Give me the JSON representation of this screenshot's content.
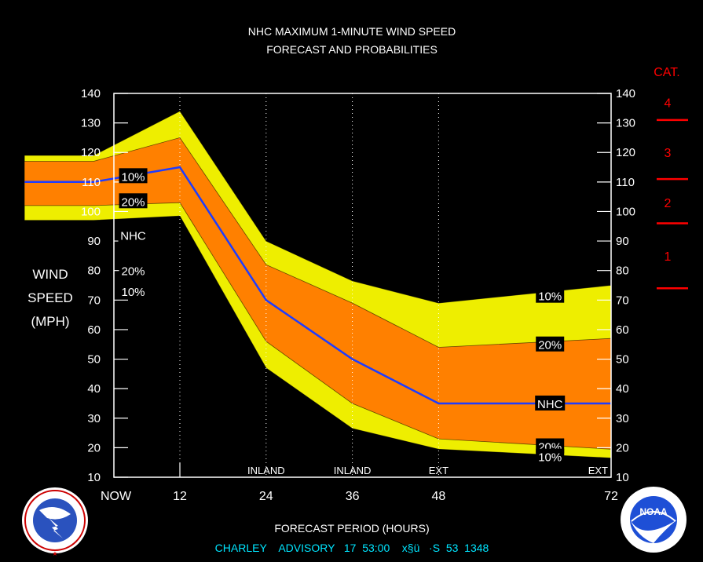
{
  "chart_data": {
    "type": "area",
    "title": "NHC MAXIMUM 1-MINUTE WIND SPEED",
    "subtitle": "FORECAST AND PROBABILITIES",
    "ylabel_lines": [
      "WIND",
      "SPEED",
      "(MPH)"
    ],
    "xlabel": "FORECAST PERIOD (HOURS)",
    "ylim": [
      10,
      140
    ],
    "xlim": [
      0,
      72
    ],
    "yticks": [
      10,
      20,
      30,
      40,
      50,
      60,
      70,
      80,
      90,
      100,
      110,
      120,
      130,
      140
    ],
    "xticks": [
      {
        "x": 0,
        "label": "NOW"
      },
      {
        "x": 12,
        "label": "12"
      },
      {
        "x": 24,
        "label": "24"
      },
      {
        "x": 36,
        "label": "36"
      },
      {
        "x": 48,
        "label": "48"
      },
      {
        "x": 72,
        "label": "72"
      }
    ],
    "period_labels": [
      {
        "x": 24,
        "label": "INLAND"
      },
      {
        "x": 36,
        "label": "INLAND"
      },
      {
        "x": 48,
        "label": "EXT"
      },
      {
        "x": 72,
        "label": "EXT"
      }
    ],
    "x": [
      -9.6,
      0,
      12,
      24,
      36,
      48,
      72
    ],
    "series": [
      {
        "name": "10%",
        "role": "upper_outer",
        "values": [
          119,
          119,
          134,
          90,
          76.5,
          69,
          75
        ]
      },
      {
        "name": "20%",
        "role": "upper_inner",
        "values": [
          117,
          117,
          125,
          82,
          69,
          54,
          57
        ]
      },
      {
        "name": "NHC",
        "role": "forecast",
        "values": [
          110,
          110,
          115,
          70,
          50,
          35,
          35
        ]
      },
      {
        "name": "20%",
        "role": "lower_inner",
        "values": [
          102,
          102,
          103,
          56,
          35,
          23,
          19.5
        ]
      },
      {
        "name": "10%",
        "role": "lower_outer",
        "values": [
          97,
          97,
          98.5,
          47,
          26.5,
          19.5,
          16.5
        ]
      }
    ],
    "band_labels": [
      {
        "text": "10%",
        "x": 5.5,
        "y": 112
      },
      {
        "text": "20%",
        "x": 5.5,
        "y": 103.5
      },
      {
        "text": "NHC",
        "x": 5.5,
        "y": 92
      },
      {
        "text": "20%",
        "x": 5.5,
        "y": 80
      },
      {
        "text": "10%",
        "x": 5.5,
        "y": 73
      },
      {
        "text": "10%",
        "x": 63.5,
        "y": 71.5
      },
      {
        "text": "20%",
        "x": 63.5,
        "y": 55
      },
      {
        "text": "NHC",
        "x": 63.5,
        "y": 35
      },
      {
        "text": "20%",
        "x": 63.5,
        "y": 20.5
      },
      {
        "text": "10%",
        "x": 63.5,
        "y": 17
      }
    ],
    "category_scale": {
      "title": "CAT.",
      "boundaries": [
        131,
        111,
        96,
        74
      ],
      "labels": [
        {
          "text": "4",
          "y": 137
        },
        {
          "text": "3",
          "y": 120
        },
        {
          "text": "2",
          "y": 103
        },
        {
          "text": "1",
          "y": 85
        }
      ]
    },
    "colors": {
      "background": "#000000",
      "outer_band": "#eeee00",
      "inner_band": "#ff8000",
      "forecast_line": "#1e3cff",
      "text": "#ffffff",
      "category": "#ff0000",
      "footer": "#00e5ff"
    }
  },
  "footer": {
    "advisory_line": "CHARLEY    ADVISORY   17  53:00  \u0004\u0004  x§ü   ·S\u0004\u0004  53  1348"
  },
  "logos": {
    "left": {
      "icon": "national-weather-service-logo",
      "text": "NATIONAL WEATHER SERVICE"
    },
    "right": {
      "icon": "noaa-logo",
      "text": "NOAA"
    }
  }
}
